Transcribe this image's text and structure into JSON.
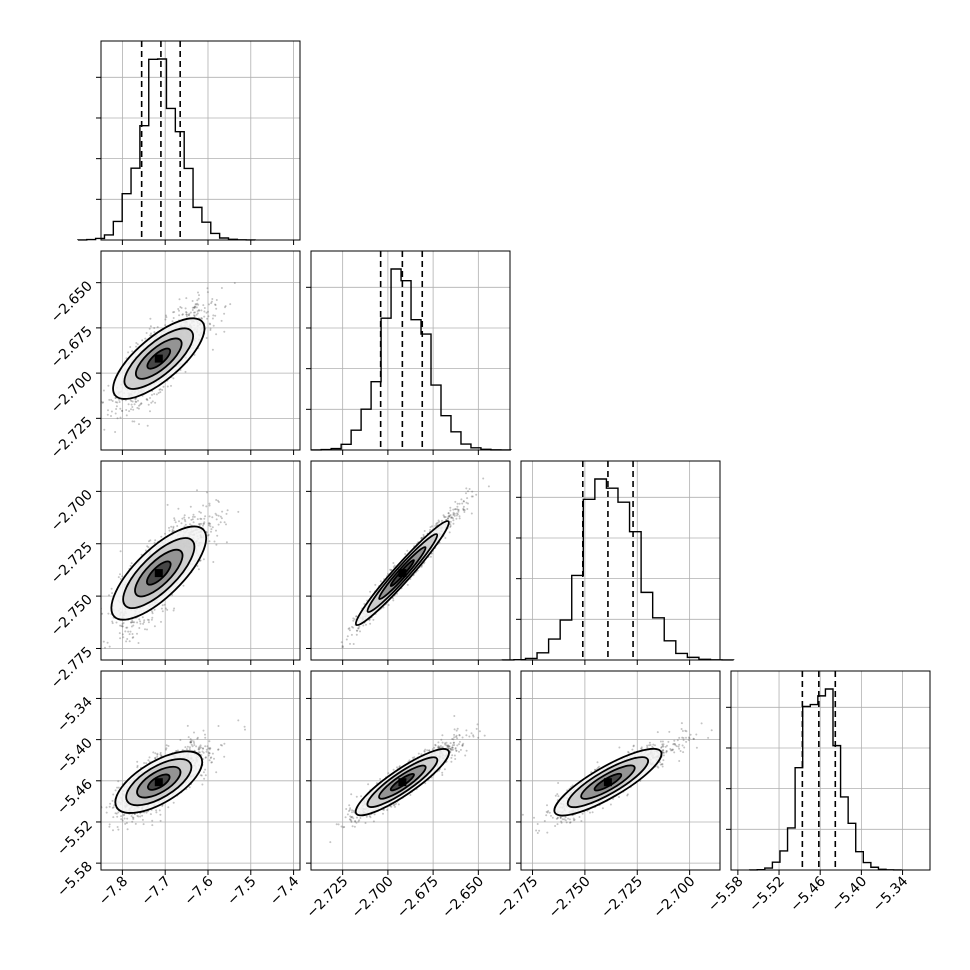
{
  "chart_data": {
    "type": "corner",
    "n_params": 4,
    "params": [
      {
        "mean": -7.715,
        "sd": 0.045,
        "range": [
          -7.85,
          -7.385
        ],
        "ticks": [
          -7.8,
          -7.7,
          -7.6,
          -7.5,
          -7.4
        ],
        "tick_labels": [
          "−7.8",
          "−7.7",
          "−7.6",
          "−7.5",
          "−7.4"
        ],
        "quantiles": [
          -7.755,
          -7.71,
          -7.665
        ]
      },
      {
        "mean": -2.692,
        "sd": 0.012,
        "range": [
          -2.7425,
          -2.6325
        ],
        "ticks": [
          -2.725,
          -2.7,
          -2.675,
          -2.65
        ],
        "tick_labels": [
          "−2.725",
          "−2.700",
          "−2.675",
          "−2.650"
        ],
        "quantiles": [
          -2.704,
          -2.692,
          -2.681
        ]
      },
      {
        "mean": -2.739,
        "sd": 0.012,
        "range": [
          -2.7805,
          -2.6855
        ],
        "ticks": [
          -2.775,
          -2.75,
          -2.725,
          -2.7
        ],
        "tick_labels": [
          "−2.775",
          "−2.750",
          "−2.725",
          "−2.700"
        ],
        "quantiles": [
          -2.751,
          -2.739,
          -2.727
        ]
      },
      {
        "mean": -5.462,
        "sd": 0.024,
        "range": [
          -5.59,
          -5.3
        ],
        "ticks": [
          -5.58,
          -5.52,
          -5.46,
          -5.4,
          -5.34
        ],
        "tick_labels": [
          "−5.58",
          "−5.52",
          "−5.46",
          "−5.40",
          "−5.34"
        ],
        "quantiles": [
          -5.486,
          -5.462,
          -5.438
        ]
      }
    ],
    "correlations": {
      "1-0": 0.75,
      "2-0": 0.75,
      "2-1": 0.97,
      "3-0": 0.7,
      "3-1": 0.9,
      "3-2": 0.88
    },
    "histogram_bins": 20,
    "contour_levels_sigma": [
      0.5,
      1.0,
      1.5,
      2.0
    ],
    "grid": true
  }
}
